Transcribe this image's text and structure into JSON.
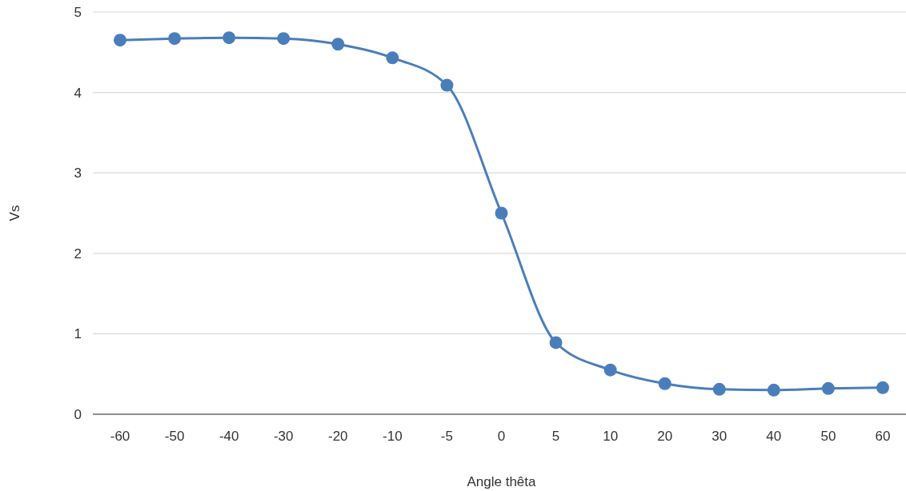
{
  "chart_data": {
    "type": "line",
    "xlabel": "Angle thêta",
    "ylabel": "Vs",
    "categories": [
      "-60",
      "-50",
      "-40",
      "-30",
      "-20",
      "-10",
      "-5",
      "0",
      "5",
      "10",
      "20",
      "30",
      "40",
      "50",
      "60"
    ],
    "series": [
      {
        "color": "#4a7ebb",
        "values": [
          4.65,
          4.67,
          4.68,
          4.67,
          4.6,
          4.43,
          4.09,
          2.5,
          0.89,
          0.55,
          0.38,
          0.31,
          0.3,
          0.32,
          0.33
        ]
      }
    ],
    "ylim": [
      0,
      5
    ],
    "yticks": [
      0,
      1,
      2,
      3,
      4,
      5
    ],
    "grid": "y",
    "marker": "circle",
    "line_style": "solid"
  }
}
